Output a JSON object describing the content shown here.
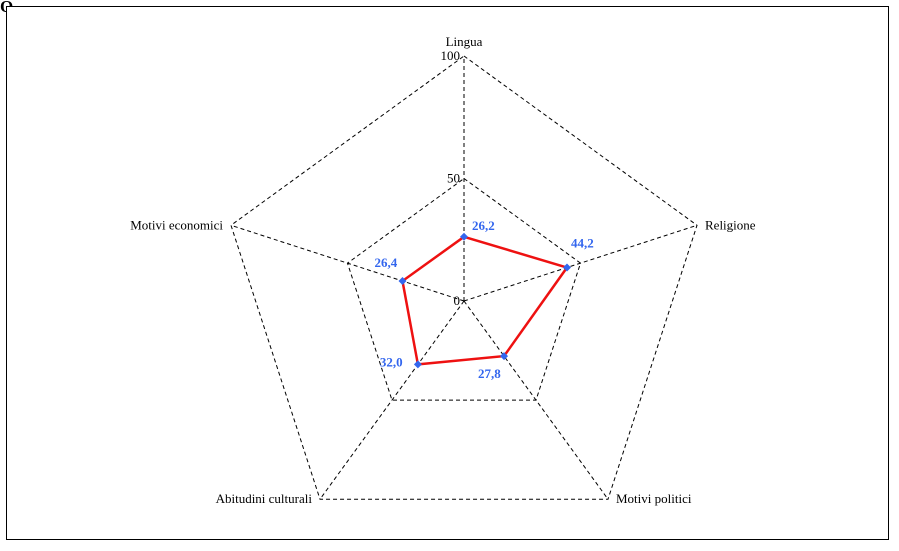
{
  "title": "Q",
  "chart_data": {
    "type": "radar",
    "categories": [
      "Lingua",
      "Religione",
      "Motivi politici",
      "Abitudini culturali",
      "Motivi economici"
    ],
    "series": [
      {
        "values": [
          26.2,
          44.2,
          27.8,
          32.0,
          26.4
        ]
      }
    ],
    "data_labels": [
      "26,2",
      "44,2",
      "27,8",
      "32,0",
      "26,4"
    ],
    "rlim": [
      0,
      100
    ],
    "ticks": [
      0,
      50,
      100
    ],
    "tick_labels": [
      "0",
      "50",
      "100"
    ],
    "grid": true,
    "legend": "none",
    "colors": {
      "line": "#ee1111",
      "marker": "#3366ee",
      "label": "#3366ee",
      "grid": "#000000"
    }
  }
}
